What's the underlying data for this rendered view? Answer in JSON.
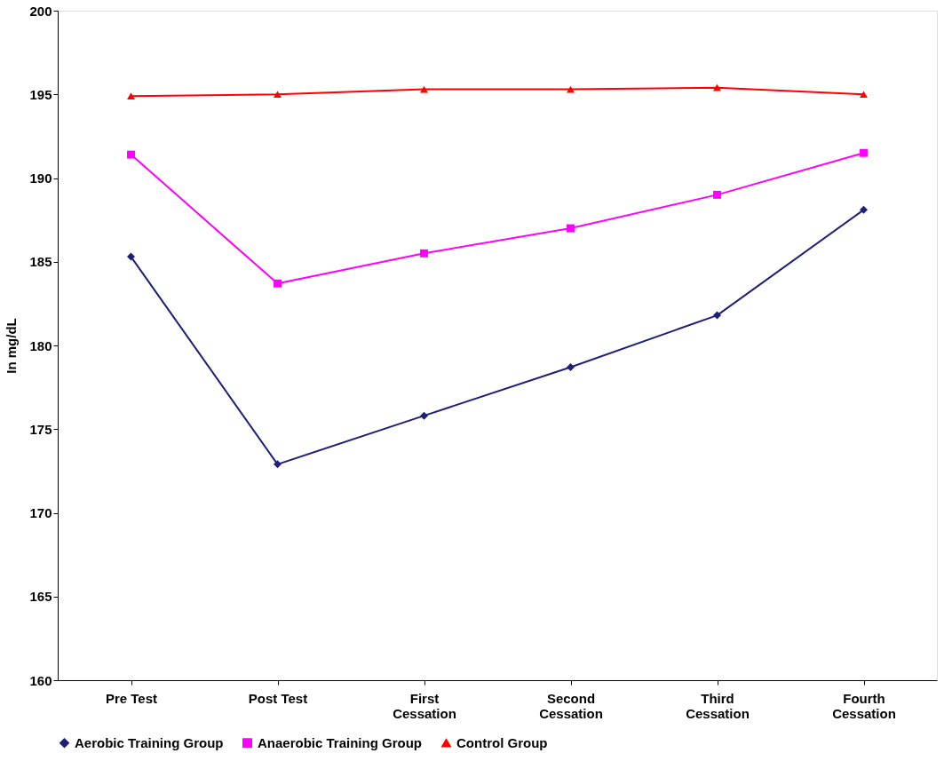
{
  "chart_data": {
    "type": "line",
    "ylabel": "In mg/dL",
    "categories": [
      "Pre Test",
      "Post Test",
      "First\nCessation",
      "Second\nCessation",
      "Third\nCessation",
      "Fourth\nCessation"
    ],
    "series": [
      {
        "name": "Aerobic  Training  Group",
        "color": "#1f1f7a",
        "marker": "diamond",
        "values": [
          185.3,
          172.9,
          175.8,
          178.7,
          181.8,
          188.1
        ]
      },
      {
        "name": "Anaerobic  Training  Group",
        "color": "#ff00ff",
        "marker": "square",
        "values": [
          191.4,
          183.7,
          185.5,
          187.0,
          189.0,
          191.5
        ]
      },
      {
        "name": "Control  Group",
        "color": "#ff0000",
        "marker": "triangle",
        "values": [
          194.9,
          195.0,
          195.3,
          195.3,
          195.4,
          195.0
        ]
      }
    ],
    "ylim": [
      160,
      200
    ],
    "yticks": [
      160,
      165,
      170,
      175,
      180,
      185,
      190,
      195,
      200
    ],
    "grid": false,
    "legend": "bottom",
    "line_style": "solid"
  }
}
